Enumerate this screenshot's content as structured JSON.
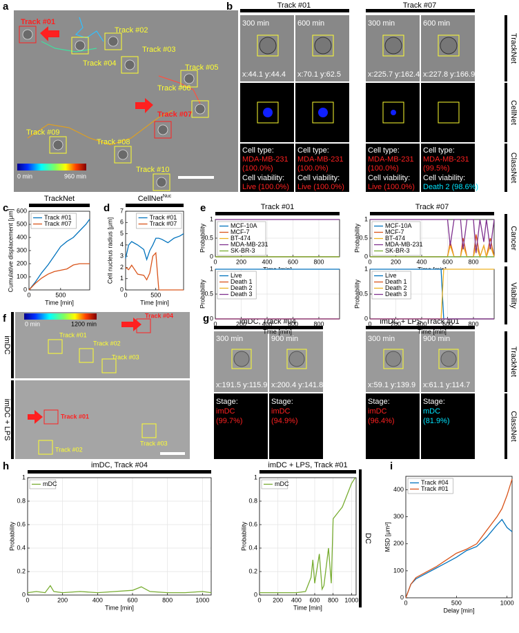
{
  "panel_letters": [
    "a",
    "b",
    "c",
    "d",
    "e",
    "f",
    "g",
    "h",
    "i"
  ],
  "panel_a": {
    "tracks": [
      {
        "name": "Track #01",
        "color": "#ff2020"
      },
      {
        "name": "Track #02",
        "color": "#ffff30"
      },
      {
        "name": "Track #03",
        "color": "#ffff30"
      },
      {
        "name": "Track #04",
        "color": "#ffff30"
      },
      {
        "name": "Track #05",
        "color": "#ffff30"
      },
      {
        "name": "Track #06",
        "color": "#ffff30"
      },
      {
        "name": "Track #07",
        "color": "#ff2020"
      },
      {
        "name": "Track #08",
        "color": "#ffff30"
      },
      {
        "name": "Track #09",
        "color": "#ffff30"
      },
      {
        "name": "Track #10",
        "color": "#ffff30"
      }
    ],
    "colorbar": [
      "0 min",
      "960 min"
    ]
  },
  "panel_b": {
    "row_labels": [
      "TrackNet",
      "CellNet",
      "ClassNet"
    ],
    "cell_type_label": "Cell type:",
    "viability_label": "Cell viability:",
    "tracks": [
      {
        "title": "Track #01",
        "frames": [
          {
            "time": "300 min",
            "coords": "x:44.1 y:44.4",
            "cell_type": "MDA-MB-231",
            "cell_type_prob": "(100.0%)",
            "viability": "Live (100.0%)",
            "viability_color": "#ff2020"
          },
          {
            "time": "600 min",
            "coords": "x:70.1 y:62.5",
            "cell_type": "MDA-MB-231",
            "cell_type_prob": "(100.0%)",
            "viability": "Live (100.0%)",
            "viability_color": "#ff2020"
          }
        ]
      },
      {
        "title": "Track #07",
        "frames": [
          {
            "time": "300 min",
            "coords": "x:225.7 y:162.4",
            "cell_type": "MDA-MB-231",
            "cell_type_prob": "(100.0%)",
            "viability": "Live (100.0%)",
            "viability_color": "#ff2020"
          },
          {
            "time": "600 min",
            "coords": "x:227.8 y:166.9",
            "cell_type": "MDA-MB-231",
            "cell_type_prob": "(99.5%)",
            "viability": "Death 2 (98.6%)",
            "viability_color": "#00e5ff"
          }
        ]
      }
    ]
  },
  "panel_e": {
    "row_labels": [
      "Cancer",
      "Viability"
    ]
  },
  "panel_f": {
    "row_labels": [
      "imDC",
      "imDC + LPS"
    ],
    "colorbar": [
      "0 min",
      "1200 min"
    ],
    "imdc_tracks": [
      {
        "name": "Track #01",
        "color": "#ffff30"
      },
      {
        "name": "Track #02",
        "color": "#ffff30"
      },
      {
        "name": "Track #03",
        "color": "#ffff30"
      },
      {
        "name": "Track #04",
        "color": "#ff2020"
      }
    ],
    "lps_tracks": [
      {
        "name": "Track #01",
        "color": "#ff2020"
      },
      {
        "name": "Track #02",
        "color": "#ffff30"
      },
      {
        "name": "Track #03",
        "color": "#ffff30"
      }
    ]
  },
  "panel_g": {
    "row_labels": [
      "TrackNet",
      "ClassNet"
    ],
    "stage_label": "Stage:",
    "tracks": [
      {
        "title": "imDC, Track #04",
        "frames": [
          {
            "time": "300 min",
            "coords": "x:191.5 y:115.9",
            "stage": "imDC",
            "stage_prob": "(99.7%)",
            "stage_color": "#ff2020"
          },
          {
            "time": "900 min",
            "coords": "x:200.4 y:141.8",
            "stage": "imDC",
            "stage_prob": "(94.9%)",
            "stage_color": "#ff2020"
          }
        ]
      },
      {
        "title": "imDC + LPS, Track #01",
        "frames": [
          {
            "time": "300 min",
            "coords": "x:59.1 y:139.9",
            "stage": "imDC",
            "stage_prob": "(96.4%)",
            "stage_color": "#ff2020"
          },
          {
            "time": "900 min",
            "coords": "x:61.1 y:114.7",
            "stage": "mDC",
            "stage_prob": "(81.9%)",
            "stage_color": "#00e5ff"
          }
        ]
      }
    ]
  },
  "panel_h": {
    "row_labels": [
      "DC"
    ]
  },
  "chart_data": [
    {
      "type": "line",
      "title": "TrackNet",
      "xlabel": "Time [min]",
      "ylabel": "Cumulative displacement [μm]",
      "x": [
        0,
        100,
        200,
        300,
        400,
        500,
        600,
        700,
        800,
        900,
        960
      ],
      "xlim": [
        0,
        960
      ],
      "xticks": [
        0,
        500
      ],
      "ylim": [
        0,
        600
      ],
      "yticks": [
        0,
        100,
        200,
        300,
        400,
        500,
        600
      ],
      "legend": "upper left",
      "series": [
        {
          "name": "Track #01",
          "color": "#0072bd",
          "values": [
            0,
            60,
            130,
            190,
            260,
            330,
            370,
            400,
            450,
            500,
            540
          ]
        },
        {
          "name": "Track #07",
          "color": "#d95319",
          "values": [
            0,
            50,
            90,
            120,
            140,
            150,
            160,
            190,
            200,
            200,
            200
          ]
        }
      ]
    },
    {
      "type": "line",
      "title": "CellNet",
      "title_superscript": "Nuc",
      "xlabel": "Time [min]",
      "ylabel": "Cell nucleus radius [μm]",
      "x": [
        0,
        50,
        100,
        200,
        300,
        350,
        400,
        450,
        500,
        550,
        600,
        700,
        800,
        900,
        960
      ],
      "xlim": [
        0,
        960
      ],
      "xticks": [
        0,
        500
      ],
      "ylim": [
        0,
        7
      ],
      "yticks": [
        0,
        1,
        2,
        3,
        4,
        5,
        6,
        7
      ],
      "legend": "upper right",
      "series": [
        {
          "name": "Track #01",
          "color": "#0072bd",
          "values": [
            2.8,
            4.0,
            4.3,
            4.0,
            3.6,
            2.7,
            3.5,
            4.0,
            4.6,
            4.6,
            4.5,
            4.2,
            4.6,
            4.8,
            5.0
          ]
        },
        {
          "name": "Track #07",
          "color": "#d95319",
          "values": [
            2.0,
            1.8,
            2.2,
            1.4,
            1.3,
            0.9,
            1.5,
            3.0,
            3.3,
            0,
            0,
            0,
            0,
            0,
            0
          ]
        }
      ]
    },
    {
      "type": "line",
      "title": "Track #01",
      "xlabel": "Time [min]",
      "ylabel": "Probability",
      "x": [
        0,
        960
      ],
      "xlim": [
        0,
        960
      ],
      "xticks": [
        0,
        200,
        400,
        600,
        800
      ],
      "ylim": [
        0,
        1
      ],
      "yticks": [
        0,
        0.5,
        1
      ],
      "grid": true,
      "legend": "upper left",
      "series": [
        {
          "name": "MCF-10A",
          "color": "#0072bd",
          "values": [
            0,
            0
          ]
        },
        {
          "name": "MCF-7",
          "color": "#d95319",
          "values": [
            0,
            0
          ]
        },
        {
          "name": "BT-474",
          "color": "#edb120",
          "values": [
            0,
            0
          ]
        },
        {
          "name": "MDA-MB-231",
          "color": "#7e2f8e",
          "values": [
            1,
            1
          ]
        },
        {
          "name": "SK-BR-3",
          "color": "#77ac30",
          "values": [
            0,
            0
          ]
        }
      ]
    },
    {
      "type": "line",
      "title": "Track #07",
      "xlabel": "Time [min]",
      "ylabel": "Probability",
      "x": [
        0,
        500,
        600,
        620,
        650,
        700,
        720,
        750,
        800,
        820,
        850,
        880,
        900,
        930,
        960
      ],
      "xlim": [
        0,
        960
      ],
      "xticks": [
        0,
        200,
        400,
        600,
        800
      ],
      "ylim": [
        0,
        1
      ],
      "yticks": [
        0,
        0.5,
        1
      ],
      "grid": true,
      "legend": "upper left",
      "series": [
        {
          "name": "MCF-10A",
          "color": "#0072bd",
          "values": [
            0,
            0,
            0,
            0,
            0,
            0,
            0,
            0,
            0,
            0,
            0,
            0,
            0,
            0,
            0
          ]
        },
        {
          "name": "MCF-7",
          "color": "#d95319",
          "values": [
            0,
            0,
            0,
            0.4,
            0,
            0,
            0.5,
            0,
            0,
            0.6,
            0,
            0.3,
            0,
            0.5,
            0
          ]
        },
        {
          "name": "BT-474",
          "color": "#edb120",
          "values": [
            0,
            0,
            0,
            0.3,
            0,
            0,
            0.3,
            0,
            0,
            0.3,
            0,
            0.3,
            0,
            0.3,
            0
          ]
        },
        {
          "name": "MDA-MB-231",
          "color": "#7e2f8e",
          "values": [
            1,
            1,
            1,
            0.3,
            1,
            1,
            0.2,
            1,
            1,
            0.1,
            1,
            0.4,
            1,
            0.2,
            1
          ]
        },
        {
          "name": "SK-BR-3",
          "color": "#77ac30",
          "values": [
            0,
            0,
            0,
            0,
            0,
            0,
            0,
            0,
            0,
            0,
            0,
            0,
            0,
            0,
            0
          ]
        }
      ]
    },
    {
      "type": "line",
      "xlabel": "Time [min]",
      "ylabel": "Probability",
      "x": [
        0,
        960
      ],
      "xlim": [
        0,
        960
      ],
      "xticks": [
        0,
        200,
        400,
        600,
        800
      ],
      "ylim": [
        0,
        1
      ],
      "yticks": [
        0,
        0.5,
        1
      ],
      "grid": true,
      "legend": "upper left",
      "series": [
        {
          "name": "Live",
          "color": "#0072bd",
          "values": [
            1,
            1
          ]
        },
        {
          "name": "Death 1",
          "color": "#d95319",
          "values": [
            0,
            0
          ]
        },
        {
          "name": "Death 2",
          "color": "#edb120",
          "values": [
            0,
            0
          ]
        },
        {
          "name": "Death 3",
          "color": "#7e2f8e",
          "values": [
            0,
            0
          ]
        }
      ]
    },
    {
      "type": "line",
      "xlabel": "Time [min]",
      "ylabel": "Probability",
      "x": [
        0,
        550,
        570,
        960
      ],
      "xlim": [
        0,
        960
      ],
      "xticks": [
        0,
        200,
        400,
        600,
        800
      ],
      "ylim": [
        0,
        1
      ],
      "yticks": [
        0,
        0.5,
        1
      ],
      "grid": true,
      "legend": "upper left",
      "series": [
        {
          "name": "Live",
          "color": "#0072bd",
          "values": [
            1,
            1,
            0,
            0
          ]
        },
        {
          "name": "Death 1",
          "color": "#d95319",
          "values": [
            0,
            0,
            0,
            0
          ]
        },
        {
          "name": "Death 2",
          "color": "#edb120",
          "values": [
            0,
            0,
            1,
            1
          ]
        },
        {
          "name": "Death 3",
          "color": "#7e2f8e",
          "values": [
            0,
            0,
            0,
            0
          ]
        }
      ]
    },
    {
      "type": "line",
      "title": "imDC, Track #04",
      "xlabel": "Time [min]",
      "ylabel": "Probability",
      "x": [
        0,
        50,
        100,
        130,
        150,
        200,
        300,
        400,
        500,
        600,
        650,
        700,
        800,
        900,
        1000,
        1050
      ],
      "xlim": [
        0,
        1050
      ],
      "xticks": [
        0,
        200,
        400,
        600,
        800,
        1000
      ],
      "ylim": [
        0,
        1
      ],
      "yticks": [
        0,
        0.2,
        0.4,
        0.6,
        0.8,
        1
      ],
      "grid": true,
      "legend": "upper left",
      "series": [
        {
          "name": "mDC",
          "color": "#77ac30",
          "values": [
            0.02,
            0.03,
            0.02,
            0.08,
            0.03,
            0.02,
            0.03,
            0.02,
            0.03,
            0.04,
            0.07,
            0.03,
            0.02,
            0.02,
            0.03,
            0.02
          ]
        }
      ]
    },
    {
      "type": "line",
      "title": "imDC + LPS, Track #01",
      "xlabel": "Time [min]",
      "ylabel": "Probability",
      "x": [
        0,
        100,
        200,
        300,
        400,
        500,
        560,
        580,
        600,
        650,
        680,
        700,
        750,
        780,
        800,
        850,
        900,
        950,
        1000,
        1040
      ],
      "xlim": [
        0,
        1050
      ],
      "xticks": [
        0,
        200,
        400,
        600,
        800,
        1000
      ],
      "ylim": [
        0,
        1
      ],
      "yticks": [
        0,
        0.2,
        0.4,
        0.6,
        0.8,
        1
      ],
      "grid": true,
      "legend": "upper left",
      "series": [
        {
          "name": "mDC",
          "color": "#77ac30",
          "values": [
            0.02,
            0.02,
            0.02,
            0.02,
            0.02,
            0.03,
            0.15,
            0.3,
            0.1,
            0.35,
            0.05,
            0.08,
            0.4,
            0.1,
            0.65,
            0.7,
            0.75,
            0.85,
            0.95,
            1.0
          ]
        }
      ]
    },
    {
      "type": "line",
      "xlabel": "Delay [min]",
      "ylabel": "MSD [μm²]",
      "x": [
        0,
        50,
        100,
        200,
        300,
        400,
        500,
        600,
        700,
        800,
        900,
        950,
        1000,
        1050
      ],
      "xlim": [
        0,
        1050
      ],
      "xticks": [
        0,
        500,
        1000
      ],
      "ylim": [
        0,
        450
      ],
      "yticks": [
        0,
        100,
        200,
        300,
        400
      ],
      "legend": "upper left",
      "series": [
        {
          "name": "Track #04",
          "color": "#0072bd",
          "values": [
            0,
            50,
            70,
            90,
            110,
            130,
            150,
            175,
            190,
            225,
            270,
            290,
            260,
            245
          ]
        },
        {
          "name": "Track #01",
          "color": "#d95319",
          "values": [
            0,
            50,
            75,
            95,
            115,
            140,
            165,
            180,
            200,
            250,
            300,
            330,
            380,
            440
          ]
        }
      ]
    }
  ]
}
